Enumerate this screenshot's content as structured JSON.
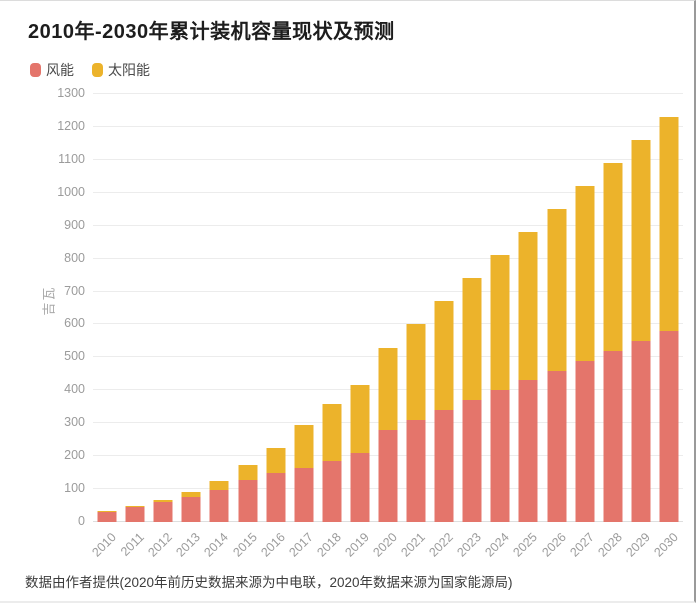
{
  "title": "2010年-2030年累计装机容量现状及预测",
  "footer": "数据由作者提供(2020年前历史数据来源为中电联，2020年数据来源为国家能源局)",
  "colors": {
    "wind": "#e4756b",
    "solar": "#ecb32b",
    "grid": "#ececec",
    "axis_text": "#9b9b9b"
  },
  "chart_data": {
    "type": "bar",
    "stacked": true,
    "title": "2010年-2030年累计装机容量现状及预测",
    "ylabel": "吉瓦",
    "ylim": [
      0,
      1300
    ],
    "ytick_step": 100,
    "grid": true,
    "legend_position": "top-left",
    "categories": [
      "2010",
      "2011",
      "2012",
      "2013",
      "2014",
      "2015",
      "2016",
      "2017",
      "2018",
      "2019",
      "2020",
      "2021",
      "2022",
      "2023",
      "2024",
      "2025",
      "2026",
      "2027",
      "2028",
      "2029",
      "2030"
    ],
    "series": [
      {
        "id": "wind",
        "name": "风能",
        "color": "#e4756b",
        "values": [
          31,
          46,
          61,
          76,
          96,
          129,
          149,
          164,
          184,
          210,
          280,
          310,
          340,
          370,
          400,
          430,
          460,
          490,
          520,
          550,
          580
        ]
      },
      {
        "id": "solar",
        "name": "太阳能",
        "color": "#ecb32b",
        "values": [
          1,
          3,
          7,
          16,
          28,
          43,
          77,
          130,
          175,
          205,
          250,
          290,
          330,
          370,
          410,
          450,
          490,
          530,
          570,
          610,
          650
        ]
      }
    ]
  }
}
